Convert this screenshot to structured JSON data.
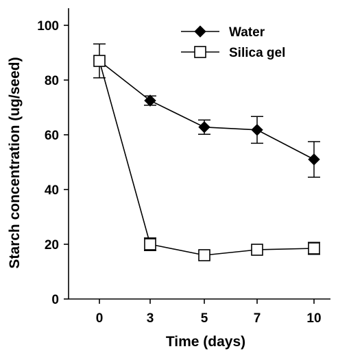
{
  "chart_data": {
    "type": "line",
    "title": "",
    "xlabel": "Time (days)",
    "ylabel": "Starch concentration  (ug/seed)",
    "categories": [
      "0",
      "3",
      "5",
      "7",
      "10"
    ],
    "ylim": [
      0,
      100
    ],
    "yticks": [
      "0",
      "20",
      "40",
      "60",
      "80",
      "100"
    ],
    "grid": false,
    "legend_position": "top-right",
    "series": [
      {
        "name": "Water",
        "marker": "filled-diamond",
        "color": "#000000",
        "values": [
          87,
          72.5,
          62.8,
          61.8,
          51
        ],
        "error": [
          6.2,
          1.7,
          2.6,
          4.9,
          6.5
        ]
      },
      {
        "name": "Silica gel",
        "marker": "open-square",
        "color": "#000000",
        "values": [
          87,
          20,
          16,
          18,
          18.5
        ],
        "error": [
          0,
          2.3,
          0,
          0,
          2.2
        ]
      }
    ]
  }
}
